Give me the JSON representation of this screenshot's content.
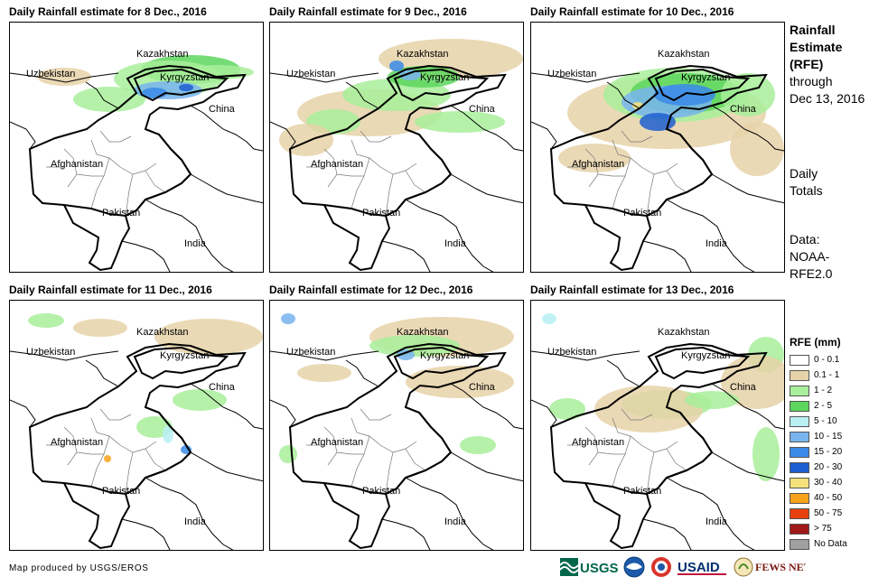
{
  "panels": [
    {
      "title": "Daily Rainfall estimate for 8 Dec., 2016"
    },
    {
      "title": "Daily Rainfall estimate for 9 Dec., 2016"
    },
    {
      "title": "Daily Rainfall estimate for 10 Dec., 2016"
    },
    {
      "title": "Daily Rainfall estimate for 11 Dec., 2016"
    },
    {
      "title": "Daily Rainfall estimate for 12 Dec., 2016"
    },
    {
      "title": "Daily Rainfall estimate for 13 Dec., 2016"
    }
  ],
  "map_labels": {
    "kazakhstan": "Kazakhstan",
    "uzbekistan": "Uzbekistan",
    "kyrgyzstan": "Kyrgyzstan",
    "china": "China",
    "afghanistan": "Afghanistan",
    "pakistan": "Pakistan",
    "india": "India"
  },
  "side": {
    "heading_lines": [
      "Rainfall",
      "Estimate",
      "(RFE)"
    ],
    "through_lines": [
      "through",
      "Dec 13, 2016"
    ],
    "totals_lines": [
      "Daily",
      "Totals"
    ],
    "data_lines": [
      "Data:",
      "NOAA-",
      "RFE2.0"
    ]
  },
  "legend": {
    "title": "RFE (mm)",
    "items": [
      {
        "label": "0 - 0.1",
        "color": "#ffffff"
      },
      {
        "label": "0.1 - 1",
        "color": "#e6d2a8"
      },
      {
        "label": "1 - 2",
        "color": "#a8ef9a"
      },
      {
        "label": "2 - 5",
        "color": "#5cd65c"
      },
      {
        "label": "5 - 10",
        "color": "#b8f0f4"
      },
      {
        "label": "10 - 15",
        "color": "#78b4ee"
      },
      {
        "label": "15 - 20",
        "color": "#3a8ae8"
      },
      {
        "label": "20 - 30",
        "color": "#1f5ed0"
      },
      {
        "label": "30 - 40",
        "color": "#f6e27a"
      },
      {
        "label": "40 - 50",
        "color": "#f7a21b"
      },
      {
        "label": "50 - 75",
        "color": "#e8410f"
      },
      {
        "label": "> 75",
        "color": "#a01818"
      },
      {
        "label": "No Data",
        "color": "#a0a0a0"
      }
    ]
  },
  "credit": "Map produced by USGS/EROS",
  "logos": {
    "usgs": "USGS",
    "usaid": "USAID",
    "fewsnet": "FEWS NET"
  }
}
